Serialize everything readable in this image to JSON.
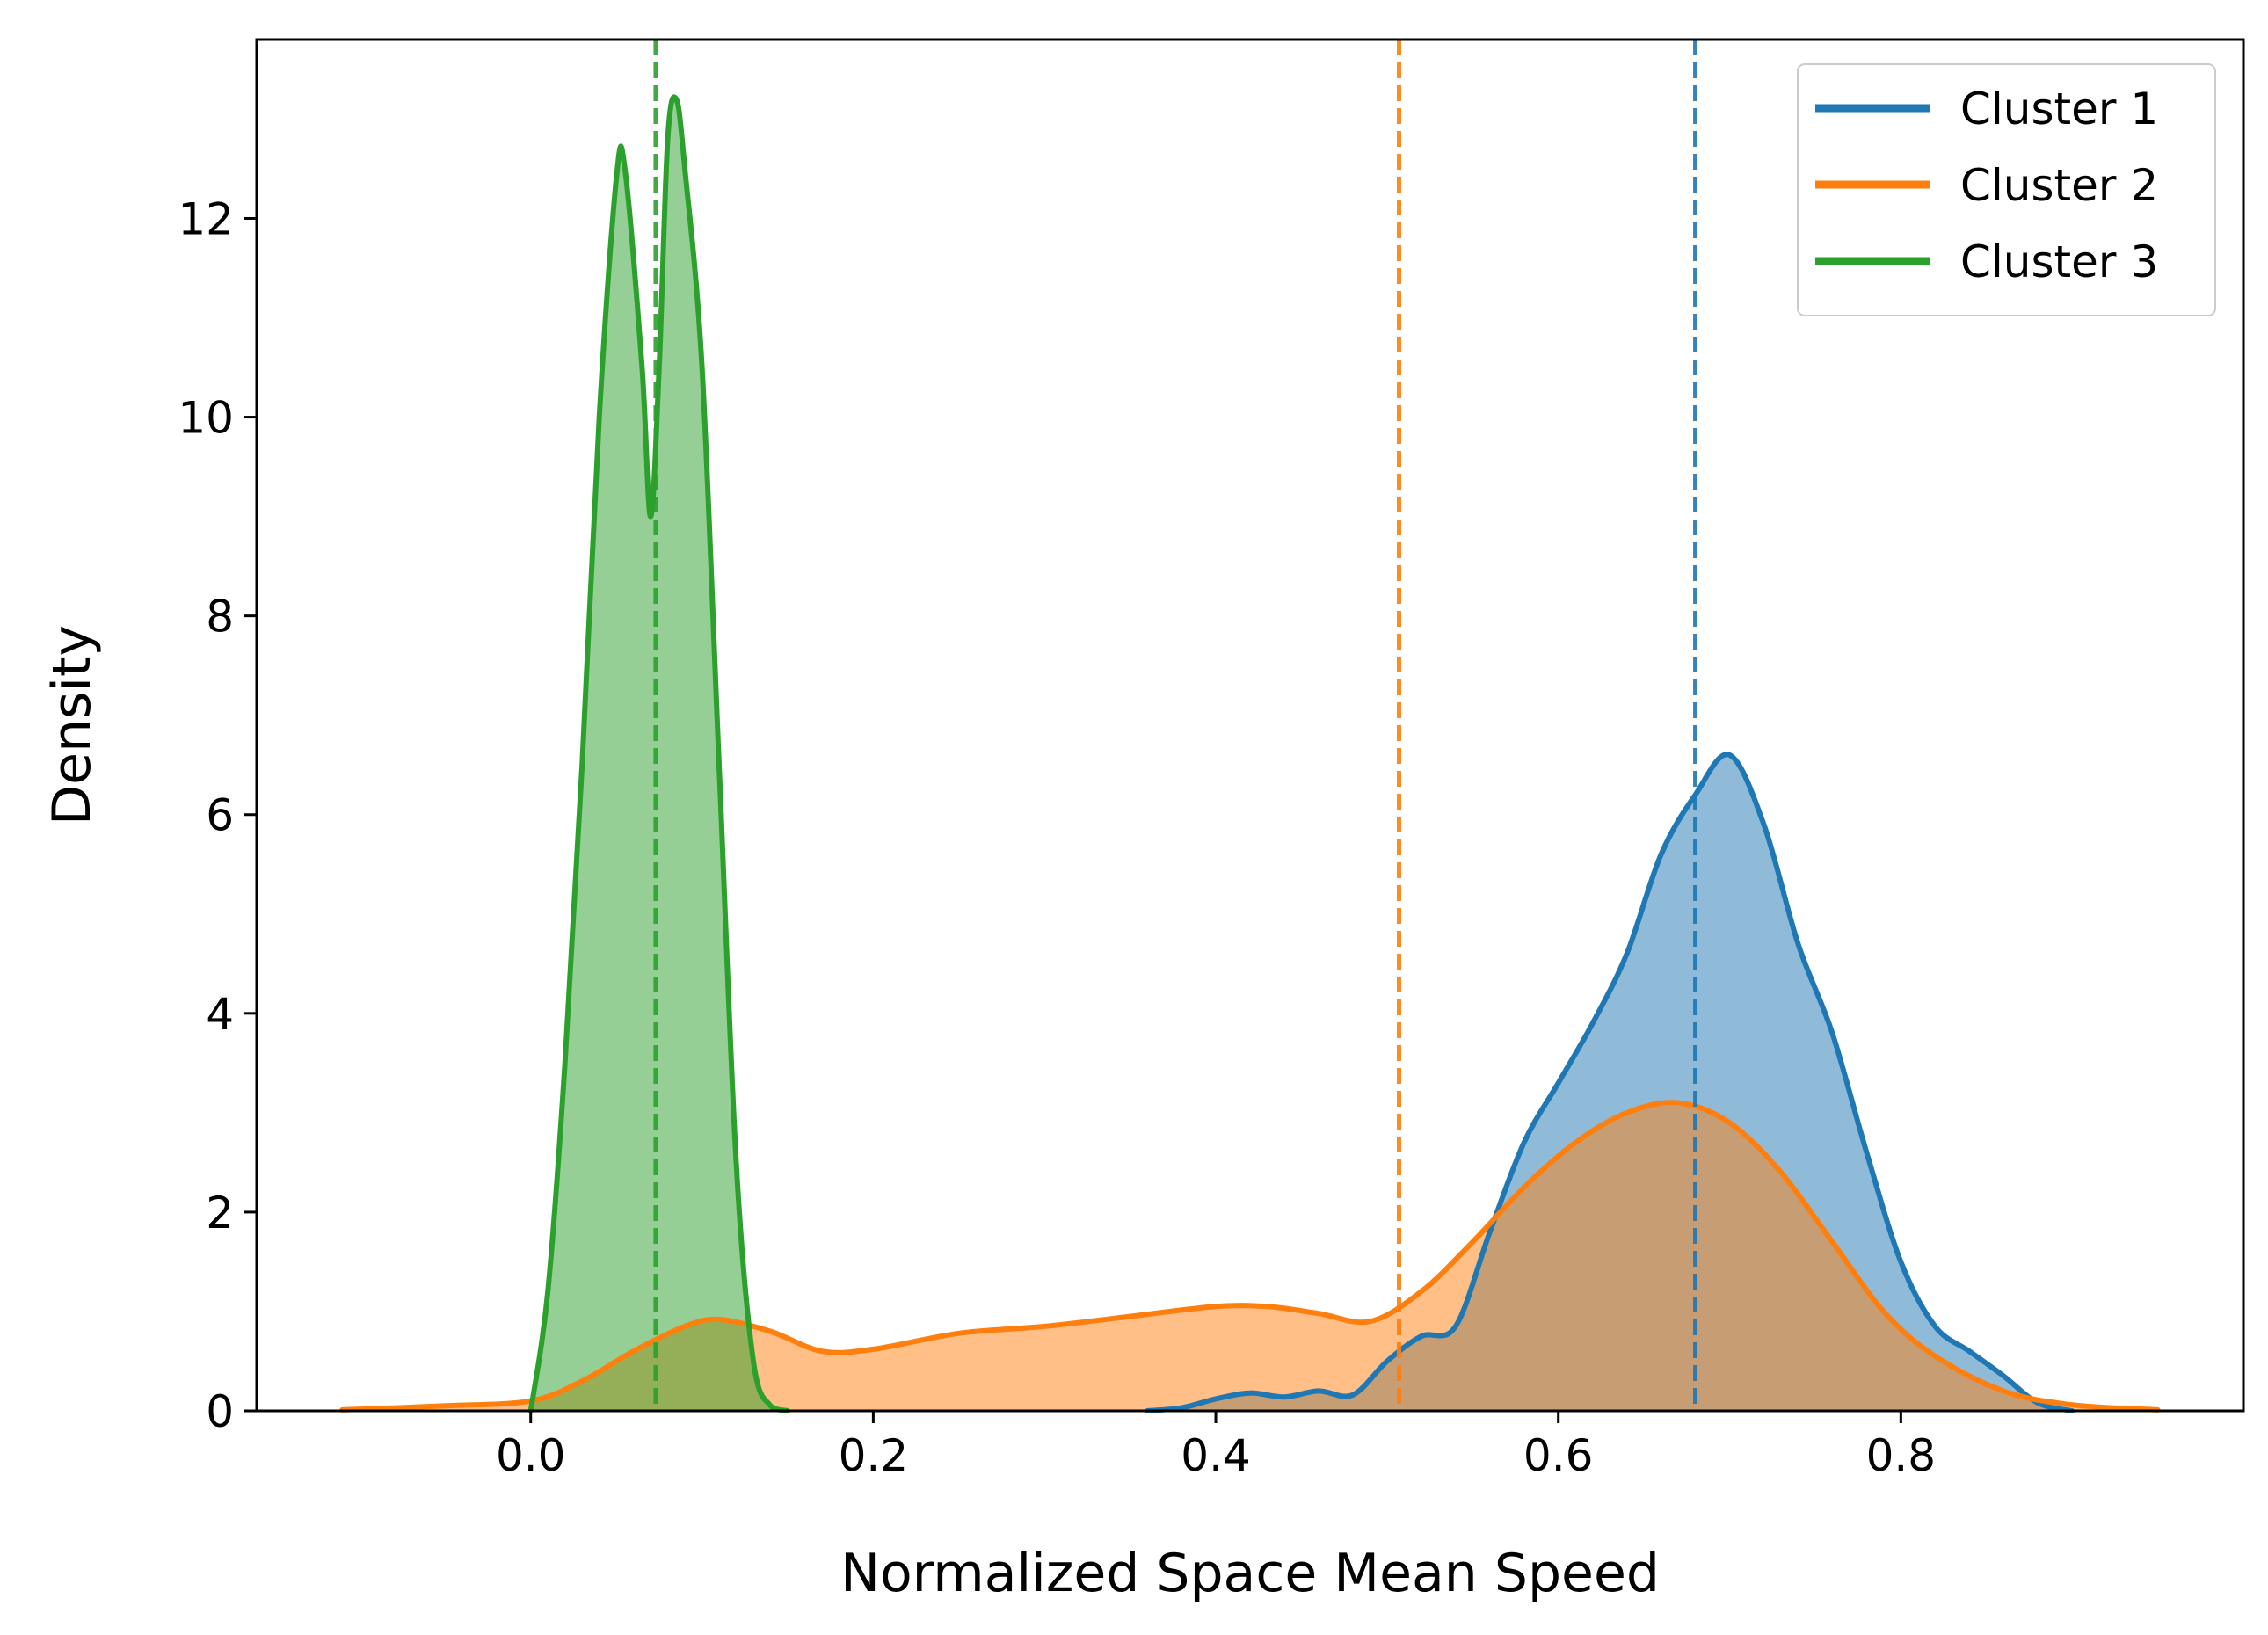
{
  "chart_data": {
    "type": "area",
    "title": "",
    "xlabel": "Normalized Space Mean Speed",
    "ylabel": "Density",
    "xlim": [
      -0.16,
      1.0
    ],
    "ylim": [
      0,
      13.8
    ],
    "x_ticks": [
      "0.0",
      "0.2",
      "0.4",
      "0.6",
      "0.8"
    ],
    "x_tick_values": [
      0.0,
      0.2,
      0.4,
      0.6,
      0.8
    ],
    "y_ticks": [
      "0",
      "2",
      "4",
      "6",
      "8",
      "10",
      "12"
    ],
    "y_tick_values": [
      0,
      2,
      4,
      6,
      8,
      10,
      12
    ],
    "grid": false,
    "legend_position": "top-right",
    "series": [
      {
        "name": "Cluster 1",
        "color": "#1f77b4",
        "fill_color": "#8fb8da",
        "mean": 0.68,
        "x": [
          0.36,
          0.38,
          0.4,
          0.42,
          0.44,
          0.46,
          0.48,
          0.5,
          0.52,
          0.54,
          0.56,
          0.58,
          0.6,
          0.62,
          0.64,
          0.66,
          0.68,
          0.7,
          0.72,
          0.74,
          0.76,
          0.78,
          0.8,
          0.82,
          0.84,
          0.86,
          0.88,
          0.9
        ],
        "y": [
          0.0,
          0.03,
          0.12,
          0.18,
          0.14,
          0.2,
          0.16,
          0.5,
          0.75,
          0.85,
          1.8,
          2.7,
          3.3,
          3.9,
          4.6,
          5.6,
          6.2,
          6.6,
          5.9,
          4.7,
          3.8,
          2.6,
          1.5,
          0.85,
          0.6,
          0.35,
          0.08,
          0.0
        ]
      },
      {
        "name": "Cluster 2",
        "color": "#ff7f0e",
        "fill_color": "#ffbd86",
        "mean": 0.507,
        "x": [
          -0.11,
          -0.05,
          0.0,
          0.03,
          0.06,
          0.09,
          0.11,
          0.14,
          0.17,
          0.2,
          0.25,
          0.3,
          0.35,
          0.4,
          0.43,
          0.46,
          0.49,
          0.52,
          0.55,
          0.58,
          0.61,
          0.64,
          0.67,
          0.7,
          0.73,
          0.76,
          0.79,
          0.82,
          0.86,
          0.9,
          0.95
        ],
        "y": [
          0.01,
          0.05,
          0.1,
          0.3,
          0.6,
          0.85,
          0.92,
          0.8,
          0.6,
          0.62,
          0.78,
          0.85,
          0.95,
          1.05,
          1.05,
          0.98,
          0.9,
          1.2,
          1.7,
          2.25,
          2.7,
          3.0,
          3.1,
          2.9,
          2.4,
          1.7,
          1.0,
          0.55,
          0.2,
          0.06,
          0.01
        ]
      },
      {
        "name": "Cluster 3",
        "color": "#2ca02c",
        "fill_color": "#98d198",
        "mean": 0.073,
        "x": [
          0.0,
          0.01,
          0.02,
          0.03,
          0.04,
          0.05,
          0.055,
          0.065,
          0.07,
          0.075,
          0.08,
          0.085,
          0.09,
          0.1,
          0.11,
          0.12,
          0.13,
          0.14,
          0.15
        ],
        "y": [
          0.0,
          1.2,
          3.5,
          6.5,
          10.0,
          12.4,
          12.5,
          10.5,
          9.0,
          10.5,
          12.8,
          13.2,
          12.5,
          10.5,
          6.5,
          2.5,
          0.5,
          0.05,
          0.0
        ]
      }
    ]
  }
}
